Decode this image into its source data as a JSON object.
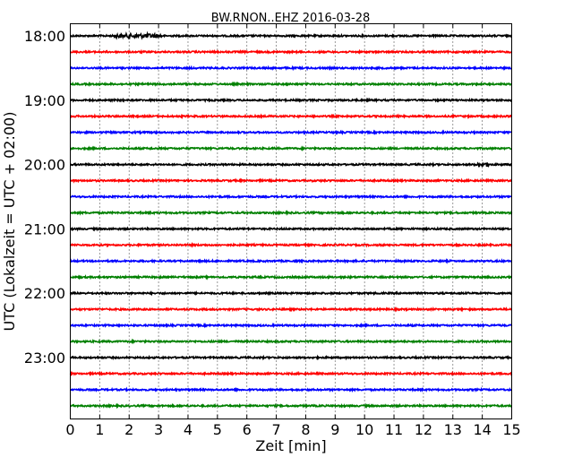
{
  "chart_data": {
    "type": "line",
    "title": "BW.RNON..EHZ 2016-03-28",
    "xlabel": "Zeit  [min]",
    "ylabel": "UTC (Lokalzeit = UTC + 02:00)",
    "xlim": [
      0,
      15
    ],
    "x_ticks": [
      "0",
      "1",
      "2",
      "3",
      "4",
      "5",
      "6",
      "7",
      "8",
      "9",
      "10",
      "11",
      "12",
      "13",
      "14",
      "15"
    ],
    "y_ticks": [
      "18:00",
      "19:00",
      "20:00",
      "21:00",
      "22:00",
      "23:00"
    ],
    "grid": "vertical dotted lines at each minute",
    "trace_interval_min": 15,
    "series_colors": [
      "#000000",
      "#ff0000",
      "#0000ff",
      "#008000"
    ],
    "series": [
      {
        "start": "18:00",
        "color": "#000000",
        "event": {
          "from_min": 1.5,
          "to_min": 3.1
        }
      },
      {
        "start": "18:15",
        "color": "#ff0000"
      },
      {
        "start": "18:30",
        "color": "#0000ff"
      },
      {
        "start": "18:45",
        "color": "#008000"
      },
      {
        "start": "19:00",
        "color": "#000000"
      },
      {
        "start": "19:15",
        "color": "#ff0000"
      },
      {
        "start": "19:30",
        "color": "#0000ff"
      },
      {
        "start": "19:45",
        "color": "#008000"
      },
      {
        "start": "20:00",
        "color": "#000000",
        "event": {
          "from_min": 13.8,
          "to_min": 14.3
        }
      },
      {
        "start": "20:15",
        "color": "#ff0000"
      },
      {
        "start": "20:30",
        "color": "#0000ff"
      },
      {
        "start": "20:45",
        "color": "#008000"
      },
      {
        "start": "21:00",
        "color": "#000000"
      },
      {
        "start": "21:15",
        "color": "#ff0000"
      },
      {
        "start": "21:30",
        "color": "#0000ff"
      },
      {
        "start": "21:45",
        "color": "#008000"
      },
      {
        "start": "22:00",
        "color": "#000000"
      },
      {
        "start": "22:15",
        "color": "#ff0000"
      },
      {
        "start": "22:30",
        "color": "#0000ff"
      },
      {
        "start": "22:45",
        "color": "#008000"
      },
      {
        "start": "23:00",
        "color": "#000000"
      },
      {
        "start": "23:15",
        "color": "#ff0000"
      },
      {
        "start": "23:30",
        "color": "#0000ff"
      },
      {
        "start": "23:45",
        "color": "#008000"
      }
    ]
  }
}
